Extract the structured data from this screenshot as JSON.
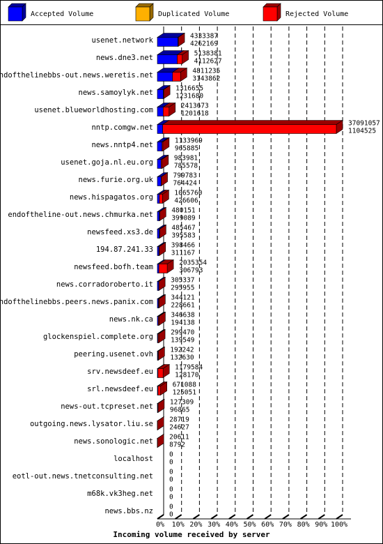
{
  "chart_data": {
    "type": "bar3d-stacked-horizontal",
    "x_label": "Incoming volume received by server",
    "categories": [
      "usenet.network",
      "news.dne3.net",
      "endofthelinebbs-out.news.weretis.net",
      "news.samoylyk.net",
      "usenet.blueworldhosting.com",
      "nntp.comgw.net",
      "news.nntp4.net",
      "usenet.goja.nl.eu.org",
      "news.furie.org.uk",
      "news.hispagatos.org",
      "endoftheline-out.news.chmurka.net",
      "newsfeed.xs3.de",
      "194.87.241.33",
      "newsfeed.bofh.team",
      "news.corradoroberto.it",
      "endofthelinebbs.peers.news.panix.com",
      "news.nk.ca",
      "glockenspiel.complete.org",
      "peering.usenet.ovh",
      "srv.newsdeef.eu",
      "srl.newsdeef.eu",
      "news-out.tcpreset.net",
      "outgoing.news.lysator.liu.se",
      "news.sonologic.net",
      "localhost",
      "eotl-out.news.tnetconsulting.net",
      "m68k.vk3heg.net",
      "news.bbs.nz"
    ],
    "series": [
      {
        "name": "Accepted Volume",
        "color": "#0000ff",
        "values": [
          4262169,
          4112627,
          3143862,
          1231680,
          1201618,
          1104525,
          965885,
          785578,
          764424,
          426606,
          399089,
          395583,
          311167,
          306793,
          295955,
          228661,
          194138,
          139549,
          132630,
          128170,
          125051,
          96865,
          24627,
          8792,
          0,
          0,
          0,
          0
        ]
      },
      {
        "name": "Duplicated Volume",
        "color": "#ffb000",
        "values": [
          0,
          0,
          0,
          0,
          0,
          0,
          0,
          0,
          0,
          0,
          0,
          0,
          0,
          0,
          0,
          0,
          0,
          0,
          0,
          0,
          0,
          0,
          0,
          0,
          0,
          0,
          0,
          0
        ]
      },
      {
        "name": "Rejected Volume",
        "color": "#ff0000",
        "values": [
          71218,
          1025754,
          1667373,
          84975,
          1212055,
          35986532,
          168084,
          198403,
          35359,
          639154,
          81062,
          89884,
          87299,
          1728561,
          9382,
          115460,
          152500,
          159921,
          59612,
          1051414,
          546037,
          30444,
          4092,
          11819,
          0,
          0,
          0,
          0
        ]
      }
    ],
    "totals": [
      4333387,
      5138381,
      4811235,
      1316655,
      2413673,
      37091057,
      1133969,
      983981,
      799783,
      1065760,
      480151,
      485467,
      398466,
      2035354,
      305337,
      344121,
      346638,
      299470,
      192242,
      1179584,
      671088,
      127309,
      28719,
      20611,
      0,
      0,
      0,
      0
    ],
    "xlim": [
      0,
      37091057
    ],
    "xticks": [
      {
        "value": 0,
        "label": "0%"
      },
      {
        "value": 3709105.7,
        "label": "10%"
      },
      {
        "value": 7418211.4,
        "label": "20%"
      },
      {
        "value": 11127317.1,
        "label": "30%"
      },
      {
        "value": 14836422.8,
        "label": "40%"
      },
      {
        "value": 18545528.5,
        "label": "50%"
      },
      {
        "value": 22254634.2,
        "label": "60%"
      },
      {
        "value": 25963739.9,
        "label": "70%"
      },
      {
        "value": 29672845.6,
        "label": "80%"
      },
      {
        "value": 33381951.3,
        "label": "90%"
      },
      {
        "value": 37091057,
        "label": "100%"
      }
    ],
    "grid": true
  }
}
